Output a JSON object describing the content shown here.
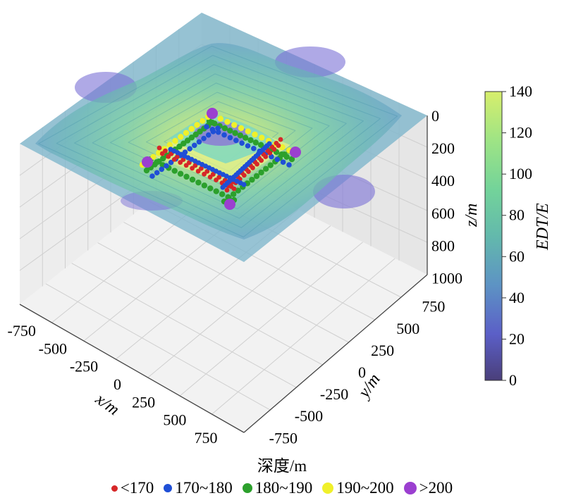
{
  "chart_data": {
    "type": "3d-contour-scatter",
    "x_label": "x/m",
    "y_label": "y/m",
    "z_label": "z/m",
    "x_ticks": [
      "-750",
      "-500",
      "-250",
      "0",
      "250",
      "500",
      "750"
    ],
    "y_ticks": [
      "750",
      "500",
      "250",
      "0",
      "-250",
      "-500",
      "-750"
    ],
    "z_ticks": [
      "0",
      "200",
      "400",
      "600",
      "800",
      "1000"
    ],
    "x_range": [
      -900,
      900
    ],
    "y_range": [
      -900,
      900
    ],
    "z_range": [
      0,
      1000
    ],
    "colorbar": {
      "label": "EDT/E",
      "ticks": [
        "0",
        "20",
        "40",
        "60",
        "80",
        "100",
        "120",
        "140"
      ],
      "range": [
        0,
        140
      ],
      "colors": [
        "#4a3f7a",
        "#5b5fc7",
        "#5d93c4",
        "#63b9ac",
        "#73d39a",
        "#9ee485",
        "#d7ee6c"
      ]
    },
    "legend_title": "深度/m",
    "legend": [
      {
        "label": "<170",
        "color": "#d62728"
      },
      {
        "label": "170~180",
        "color": "#1f4fd6"
      },
      {
        "label": "180~190",
        "color": "#2ca02c"
      },
      {
        "label": "190~200",
        "color": "#f0f02a"
      },
      {
        "label": ">200",
        "color": "#9b3fd0"
      }
    ],
    "plane_z": 0,
    "pit_half_width_m": 220,
    "pit_center_depth_m": 205
  }
}
